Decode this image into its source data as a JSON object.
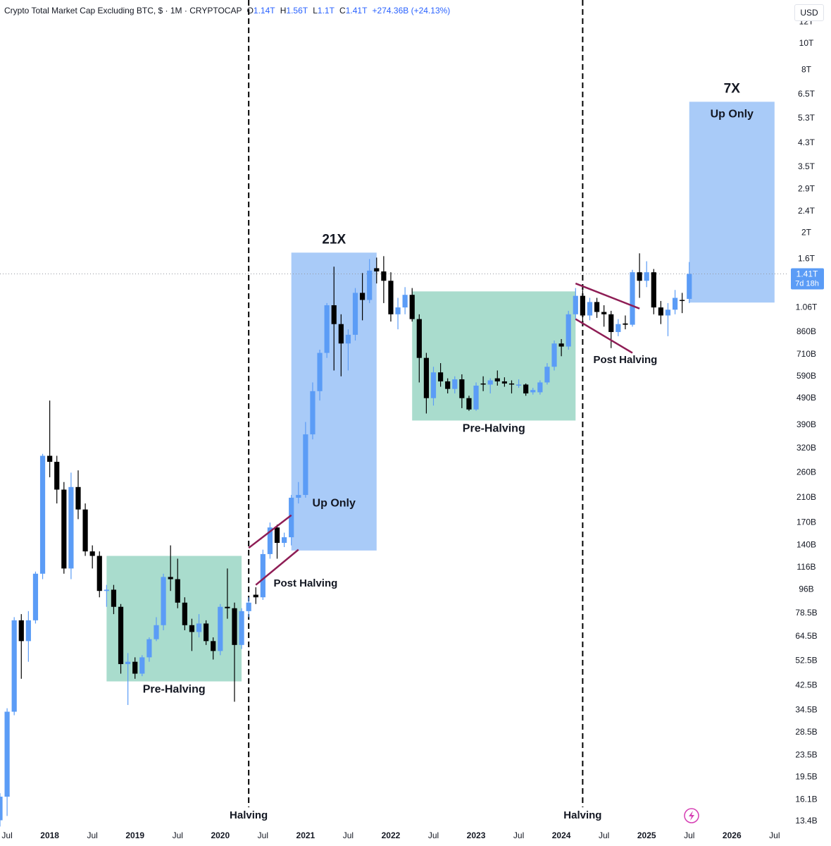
{
  "header": {
    "title": "Crypto Total Market Cap Excluding BTC, $ · 1M · CRYPTOCAP",
    "ohlc": [
      {
        "key": "O",
        "value": "1.14T"
      },
      {
        "key": "H",
        "value": "1.56T"
      },
      {
        "key": "L",
        "value": "1.1T"
      },
      {
        "key": "C",
        "value": "1.41T"
      }
    ],
    "change": "+274.36B (+24.13%)"
  },
  "chart_data": {
    "type": "candlestick",
    "currency": "USD",
    "log_scale": true,
    "up_color": "#5b9cf6",
    "down_color": "#000000",
    "x": [
      "2017-06",
      "2017-07",
      "2017-08",
      "2017-09",
      "2017-10",
      "2017-11",
      "2017-12",
      "2018-01",
      "2018-02",
      "2018-03",
      "2018-04",
      "2018-05",
      "2018-06",
      "2018-07",
      "2018-08",
      "2018-09",
      "2018-10",
      "2018-11",
      "2018-12",
      "2019-01",
      "2019-02",
      "2019-03",
      "2019-04",
      "2019-05",
      "2019-06",
      "2019-07",
      "2019-08",
      "2019-09",
      "2019-10",
      "2019-11",
      "2019-12",
      "2020-01",
      "2020-02",
      "2020-03",
      "2020-04",
      "2020-05",
      "2020-06",
      "2020-07",
      "2020-08",
      "2020-09",
      "2020-10",
      "2020-11",
      "2020-12",
      "2021-01",
      "2021-02",
      "2021-03",
      "2021-04",
      "2021-05",
      "2021-06",
      "2021-07",
      "2021-08",
      "2021-09",
      "2021-10",
      "2021-11",
      "2021-12",
      "2022-01",
      "2022-02",
      "2022-03",
      "2022-04",
      "2022-05",
      "2022-06",
      "2022-07",
      "2022-08",
      "2022-09",
      "2022-10",
      "2022-11",
      "2022-12",
      "2023-01",
      "2023-02",
      "2023-03",
      "2023-04",
      "2023-05",
      "2023-06",
      "2023-07",
      "2023-08",
      "2023-09",
      "2023-10",
      "2023-11",
      "2023-12",
      "2024-01",
      "2024-02",
      "2024-03",
      "2024-04",
      "2024-05",
      "2024-06",
      "2024-07",
      "2024-08",
      "2024-09",
      "2024-10",
      "2024-11",
      "2024-12",
      "2025-01",
      "2025-02",
      "2025-03",
      "2025-04",
      "2025-05",
      "2025-06",
      "2025-07"
    ],
    "open": [
      13.5,
      16.5,
      34,
      74,
      62,
      74,
      110,
      300,
      285,
      225,
      115,
      230,
      190,
      133,
      128,
      95,
      96,
      83,
      51,
      52,
      47,
      54,
      63,
      71,
      107,
      105,
      86,
      71,
      67,
      72,
      62,
      57,
      83,
      82,
      60,
      80,
      92,
      90,
      130,
      163,
      143,
      150,
      210,
      215,
      360,
      520,
      720,
      1080,
      920,
      780,
      840,
      1200,
      1130,
      1480,
      1440,
      1330,
      1000,
      1060,
      1180,
      960,
      690,
      490,
      610,
      565,
      530,
      575,
      490,
      445,
      555,
      550,
      580,
      565,
      555,
      545,
      550,
      515,
      515,
      560,
      640,
      780,
      760,
      1000,
      1170,
      990,
      1110,
      1020,
      1000,
      860,
      925,
      915,
      1430,
      1330,
      1430,
      1060,
      990,
      1040,
      1130,
      1140
    ],
    "high": [
      17,
      35,
      76,
      78,
      80,
      112,
      305,
      480,
      300,
      240,
      260,
      265,
      200,
      140,
      133,
      100,
      100,
      85,
      56,
      54,
      55,
      64,
      76,
      110,
      140,
      125,
      90,
      75,
      78,
      74,
      64,
      85,
      115,
      86,
      82,
      90,
      98,
      135,
      170,
      167,
      156,
      215,
      240,
      400,
      560,
      740,
      1100,
      1500,
      1000,
      880,
      1250,
      1420,
      1600,
      1620,
      1640,
      1430,
      1150,
      1260,
      1250,
      1000,
      720,
      640,
      660,
      580,
      590,
      600,
      500,
      560,
      590,
      580,
      620,
      585,
      570,
      575,
      555,
      535,
      570,
      660,
      800,
      810,
      1030,
      1250,
      1230,
      1150,
      1150,
      1080,
      1030,
      960,
      990,
      1460,
      1680,
      1570,
      1470,
      1120,
      1100,
      1230,
      1200,
      1560
    ],
    "low": [
      12.8,
      14,
      33,
      45,
      52,
      72,
      105,
      250,
      200,
      110,
      105,
      175,
      128,
      115,
      90,
      83,
      78,
      47,
      36,
      45,
      46,
      52,
      62,
      68,
      95,
      82,
      68,
      57,
      64,
      60,
      53,
      55,
      75,
      37,
      58,
      76,
      85,
      88,
      125,
      125,
      138,
      140,
      200,
      210,
      345,
      480,
      690,
      620,
      590,
      620,
      800,
      950,
      1100,
      1300,
      1100,
      940,
      880,
      1000,
      940,
      560,
      430,
      460,
      540,
      510,
      510,
      450,
      440,
      440,
      520,
      510,
      545,
      540,
      510,
      535,
      500,
      505,
      505,
      550,
      620,
      700,
      740,
      960,
      930,
      950,
      970,
      900,
      750,
      830,
      880,
      900,
      1150,
      1260,
      1000,
      920,
      830,
      1000,
      1010,
      1100
    ],
    "close": [
      16.5,
      34,
      74,
      62,
      74,
      110,
      300,
      285,
      225,
      115,
      230,
      190,
      133,
      128,
      95,
      96,
      83,
      51,
      52,
      47,
      54,
      63,
      71,
      107,
      105,
      86,
      71,
      67,
      72,
      62,
      57,
      83,
      82,
      60,
      80,
      86,
      90,
      130,
      163,
      143,
      150,
      210,
      215,
      360,
      520,
      720,
      1080,
      920,
      780,
      840,
      1200,
      1130,
      1450,
      1440,
      1330,
      1000,
      1060,
      1180,
      960,
      690,
      490,
      610,
      565,
      530,
      575,
      490,
      445,
      545,
      550,
      570,
      565,
      555,
      550,
      550,
      510,
      525,
      560,
      640,
      780,
      760,
      1000,
      1170,
      990,
      1110,
      1020,
      1000,
      860,
      920,
      915,
      1430,
      1330,
      1430,
      1060,
      990,
      1040,
      1150,
      1120,
      1410
    ],
    "xlim": [
      "2017-06",
      "2026-09"
    ],
    "xticks": [
      {
        "value": "2017-07",
        "label": "Jul"
      },
      {
        "value": "2018-01",
        "label": "2018"
      },
      {
        "value": "2018-07",
        "label": "Jul"
      },
      {
        "value": "2019-01",
        "label": "2019"
      },
      {
        "value": "2019-07",
        "label": "Jul"
      },
      {
        "value": "2020-01",
        "label": "2020"
      },
      {
        "value": "2020-07",
        "label": "Jul"
      },
      {
        "value": "2021-01",
        "label": "2021"
      },
      {
        "value": "2021-07",
        "label": "Jul"
      },
      {
        "value": "2022-01",
        "label": "2022"
      },
      {
        "value": "2022-07",
        "label": "Jul"
      },
      {
        "value": "2023-01",
        "label": "2023"
      },
      {
        "value": "2023-07",
        "label": "Jul"
      },
      {
        "value": "2024-01",
        "label": "2024"
      },
      {
        "value": "2024-07",
        "label": "Jul"
      },
      {
        "value": "2025-01",
        "label": "2025"
      },
      {
        "value": "2025-07",
        "label": "Jul"
      },
      {
        "value": "2026-01",
        "label": "2026"
      },
      {
        "value": "2026-07",
        "label": "Jul"
      }
    ],
    "ylim": [
      12.6,
      14500
    ],
    "yticks": [
      {
        "value": 12000,
        "label": "12T"
      },
      {
        "value": 10000,
        "label": "10T"
      },
      {
        "value": 8000,
        "label": "8T"
      },
      {
        "value": 6500,
        "label": "6.5T"
      },
      {
        "value": 5300,
        "label": "5.3T"
      },
      {
        "value": 4300,
        "label": "4.3T"
      },
      {
        "value": 3500,
        "label": "3.5T"
      },
      {
        "value": 2900,
        "label": "2.9T"
      },
      {
        "value": 2400,
        "label": "2.4T"
      },
      {
        "value": 2000,
        "label": "2T"
      },
      {
        "value": 1600,
        "label": "1.6T"
      },
      {
        "value": 1060,
        "label": "1.06T"
      },
      {
        "value": 860,
        "label": "860B"
      },
      {
        "value": 710,
        "label": "710B"
      },
      {
        "value": 590,
        "label": "590B"
      },
      {
        "value": 490,
        "label": "490B"
      },
      {
        "value": 390,
        "label": "390B"
      },
      {
        "value": 320,
        "label": "320B"
      },
      {
        "value": 260,
        "label": "260B"
      },
      {
        "value": 210,
        "label": "210B"
      },
      {
        "value": 170,
        "label": "170B"
      },
      {
        "value": 140,
        "label": "140B"
      },
      {
        "value": 116,
        "label": "116B"
      },
      {
        "value": 96,
        "label": "96B"
      },
      {
        "value": 78.5,
        "label": "78.5B"
      },
      {
        "value": 64.5,
        "label": "64.5B"
      },
      {
        "value": 52.5,
        "label": "52.5B"
      },
      {
        "value": 42.5,
        "label": "42.5B"
      },
      {
        "value": 34.5,
        "label": "34.5B"
      },
      {
        "value": 28.5,
        "label": "28.5B"
      },
      {
        "value": 23.5,
        "label": "23.5B"
      },
      {
        "value": 19.5,
        "label": "19.5B"
      },
      {
        "value": 16.1,
        "label": "16.1B"
      },
      {
        "value": 13.4,
        "label": "13.4B"
      }
    ],
    "last_price": {
      "value": 1410,
      "label": "1.41T",
      "countdown": "7d 18h",
      "color": "#5b9cf6"
    },
    "zones": [
      {
        "label": "Pre-Halving",
        "x": [
          "2018-09",
          "2020-04"
        ],
        "y": [
          44,
          128
        ],
        "label_y": 41,
        "color": "#a9dccd"
      },
      {
        "label": "Up Only",
        "multiple": "21X",
        "x": [
          "2020-11",
          "2021-11"
        ],
        "y": [
          134,
          1690
        ],
        "label_y": 200,
        "color": "#a9cbf8"
      },
      {
        "label": "Pre-Halving",
        "x": [
          "2022-04",
          "2024-03"
        ],
        "y": [
          405,
          1215
        ],
        "label_y": 377,
        "color": "#a9dccd"
      },
      {
        "label": "Up Only",
        "multiple": "7X",
        "x": [
          "2025-07",
          "2026-07"
        ],
        "y": [
          1105,
          6100
        ],
        "label_y": 5480,
        "color": "#a9cbf8"
      }
    ],
    "trendlines": [
      {
        "from": [
          "2020-05",
          137
        ],
        "to": [
          "2020-11",
          181
        ]
      },
      {
        "from": [
          "2020-06",
          100
        ],
        "to": [
          "2020-12",
          135
        ]
      },
      {
        "from": [
          "2024-03",
          1300
        ],
        "to": [
          "2024-12",
          1050
        ]
      },
      {
        "from": [
          "2024-03",
          960
        ],
        "to": [
          "2024-11",
          720
        ]
      }
    ],
    "trendline_color": "#8e1d55",
    "annotations": [
      {
        "text": "Post Halving",
        "x": "2021-01",
        "y": 101
      },
      {
        "text": "Post Halving",
        "x": "2024-10",
        "y": 676
      }
    ],
    "halvings": [
      {
        "x": "2020-05",
        "label": "Halving"
      },
      {
        "x": "2024-04",
        "label": "Halving"
      }
    ]
  }
}
